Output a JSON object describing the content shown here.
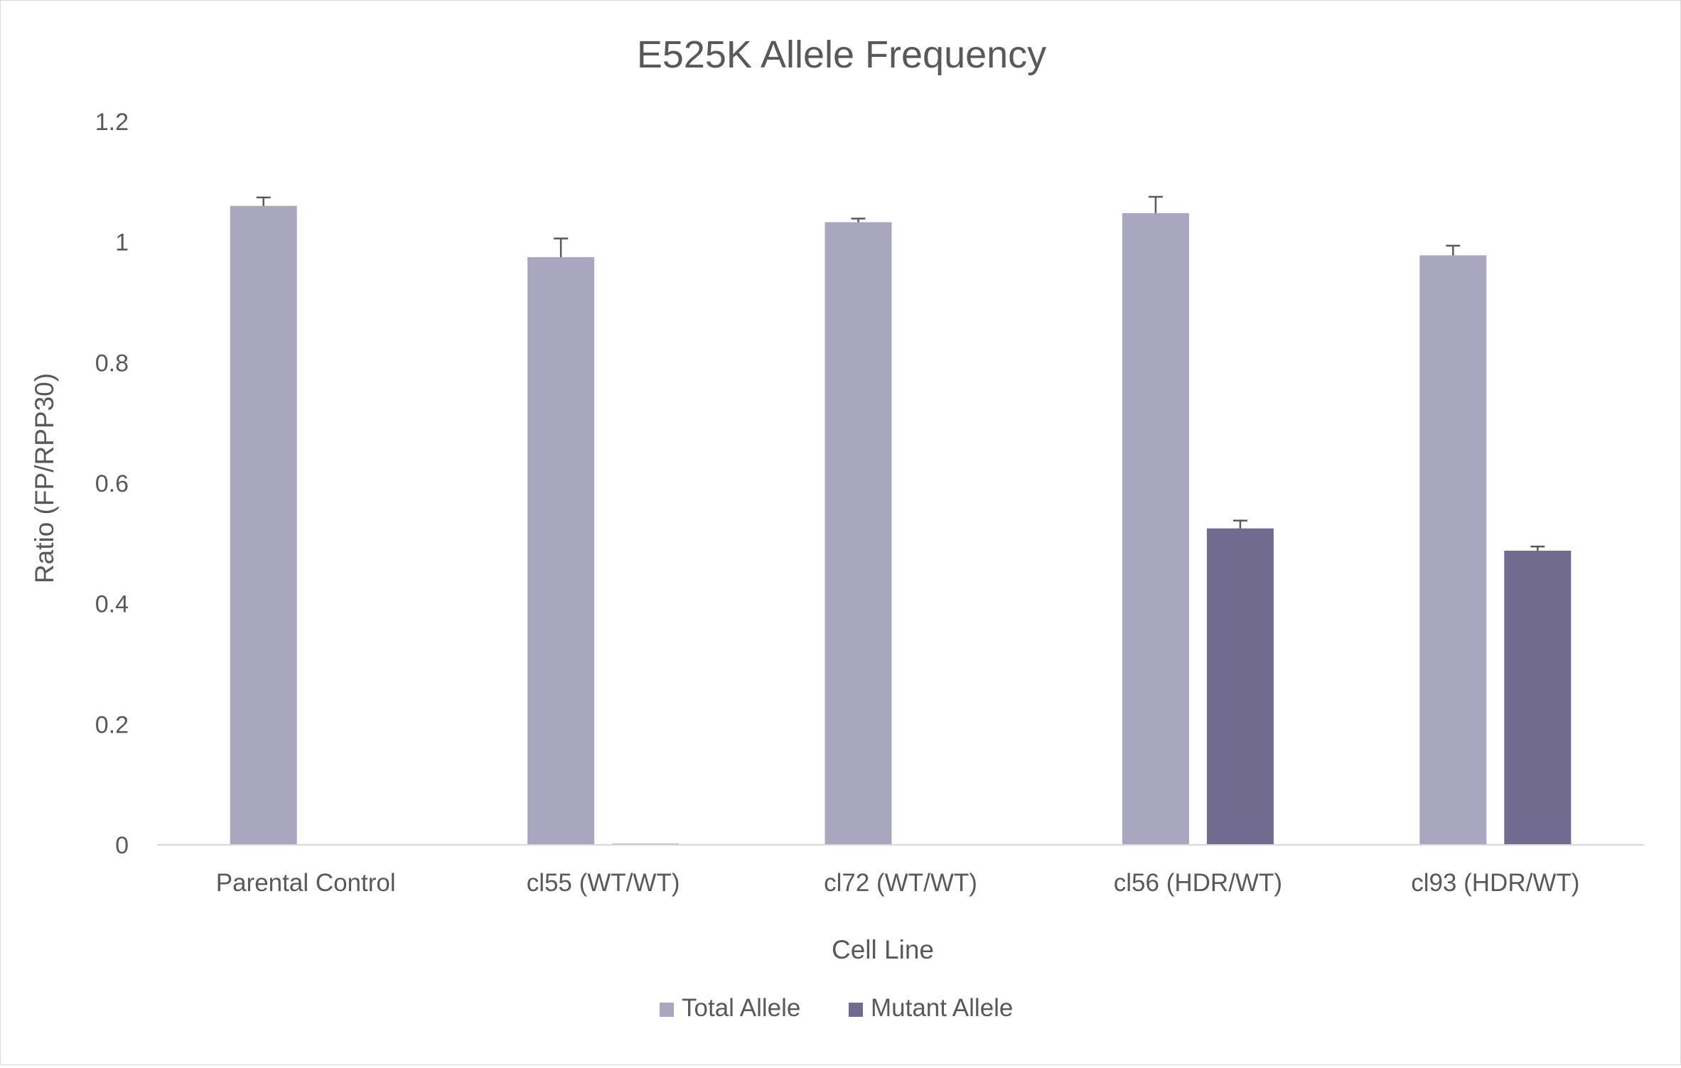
{
  "chart_data": {
    "type": "bar",
    "title": "E525K Allele Frequency",
    "xlabel": "Cell Line",
    "ylabel": "Ratio (FP/RPP30)",
    "ylim": [
      0,
      1.2
    ],
    "yticks": [
      0,
      0.2,
      0.4,
      0.6,
      0.8,
      1,
      1.2
    ],
    "ytick_labels": [
      "0",
      "0.2",
      "0.4",
      "0.6",
      "0.8",
      "1",
      "1.2"
    ],
    "categories": [
      "Parental Control",
      "cl55 (WT/WT)",
      "cl72 (WT/WT)",
      "cl56 (HDR/WT)",
      "cl93 (HDR/WT)"
    ],
    "series": [
      {
        "name": "Total Allele",
        "color": "#a9a6bf",
        "values": [
          1.06,
          0.975,
          1.033,
          1.048,
          0.978
        ],
        "errors": [
          0.014,
          0.031,
          0.006,
          0.027,
          0.016
        ]
      },
      {
        "name": "Mutant Allele",
        "color": "#716b8f",
        "values": [
          0,
          0.001,
          0,
          0.525,
          0.488
        ],
        "errors": [
          0,
          0,
          0,
          0.013,
          0.007
        ]
      }
    ],
    "grid": false,
    "legend_position": "bottom",
    "error_bars": true
  }
}
